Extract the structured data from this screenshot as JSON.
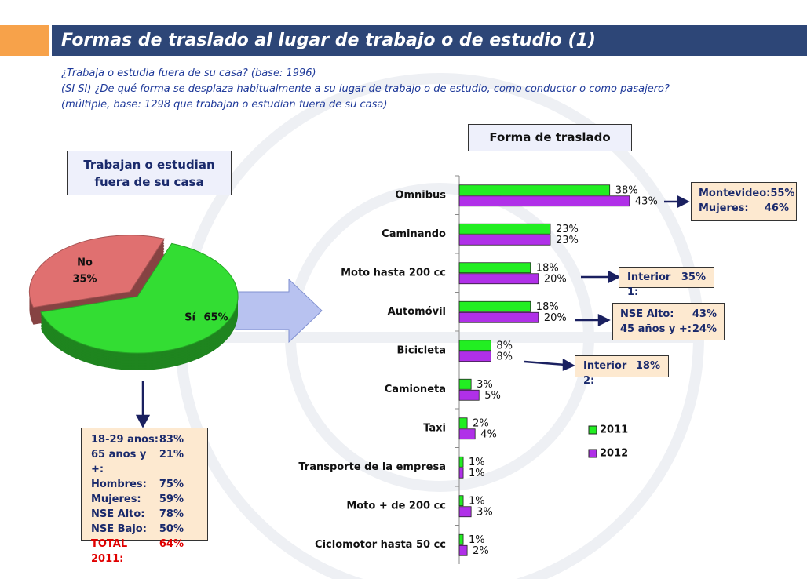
{
  "header": {
    "title": "Formas de traslado al lugar de trabajo o de estudio (1)"
  },
  "questions": [
    "¿Trabaja o estudia fuera de su casa? (base: 1996)",
    "(SI SI) ¿De qué forma se desplaza habitualmente a su lugar de trabajo o de estudio, como conductor o como pasajero?",
    "(múltiple, base:  1298 que trabajan o estudian fuera de su casa)"
  ],
  "chart_data": [
    {
      "type": "pie",
      "title": "Trabajan o estudian fuera de su casa",
      "categories": [
        "Sí",
        "No"
      ],
      "values": [
        65,
        35
      ],
      "value_labels": [
        "65%",
        "35%"
      ],
      "colors": [
        "#33dd33",
        "#e07070"
      ]
    },
    {
      "type": "bar",
      "title": "Forma de traslado",
      "orientation": "horizontal",
      "categories": [
        "Omnibus",
        "Caminando",
        "Moto hasta 200 cc",
        "Automóvil",
        "Bicicleta",
        "Camioneta",
        "Taxi",
        "Transporte de la empresa",
        "Moto + de 200 cc",
        "Ciclomotor hasta 50 cc"
      ],
      "series": [
        {
          "name": "2011",
          "color": "#22ee22",
          "values": [
            38,
            23,
            18,
            18,
            8,
            3,
            2,
            1,
            1,
            1
          ],
          "value_labels": [
            "38%",
            "23%",
            "18%",
            "18%",
            "8%",
            "3%",
            "2%",
            "1%",
            "1%",
            "1%"
          ]
        },
        {
          "name": "2012",
          "color": "#b030e8",
          "values": [
            43,
            23,
            20,
            20,
            8,
            5,
            4,
            1,
            3,
            2
          ],
          "value_labels": [
            "43%",
            "23%",
            "20%",
            "20%",
            "8%",
            "5%",
            "4%",
            "1%",
            "3%",
            "2%"
          ]
        }
      ],
      "xlim": [
        0,
        45
      ]
    }
  ],
  "profile_box": {
    "rows": [
      {
        "label": "18-29 años:",
        "value": "83%"
      },
      {
        "label": "65 años y +:",
        "value": "21%"
      },
      {
        "label": "Hombres:",
        "value": "75%"
      },
      {
        "label": "Mujeres:",
        "value": "59%"
      },
      {
        "label": "NSE Alto:",
        "value": "78%"
      },
      {
        "label": "NSE Bajo:",
        "value": "50%"
      },
      {
        "label": "TOTAL 2011:",
        "value": "64%"
      }
    ]
  },
  "callouts": [
    {
      "rows": [
        {
          "label": "Montevideo:",
          "value": "55%"
        },
        {
          "label": "Mujeres:",
          "value": "46%"
        }
      ]
    },
    {
      "rows": [
        {
          "label": "Interior 1:",
          "value": "35%"
        }
      ]
    },
    {
      "rows": [
        {
          "label": "NSE Alto:",
          "value": "43%"
        },
        {
          "label": "45 años y +:",
          "value": "24%"
        }
      ]
    },
    {
      "rows": [
        {
          "label": "Interior 2:",
          "value": "18%"
        }
      ]
    }
  ]
}
